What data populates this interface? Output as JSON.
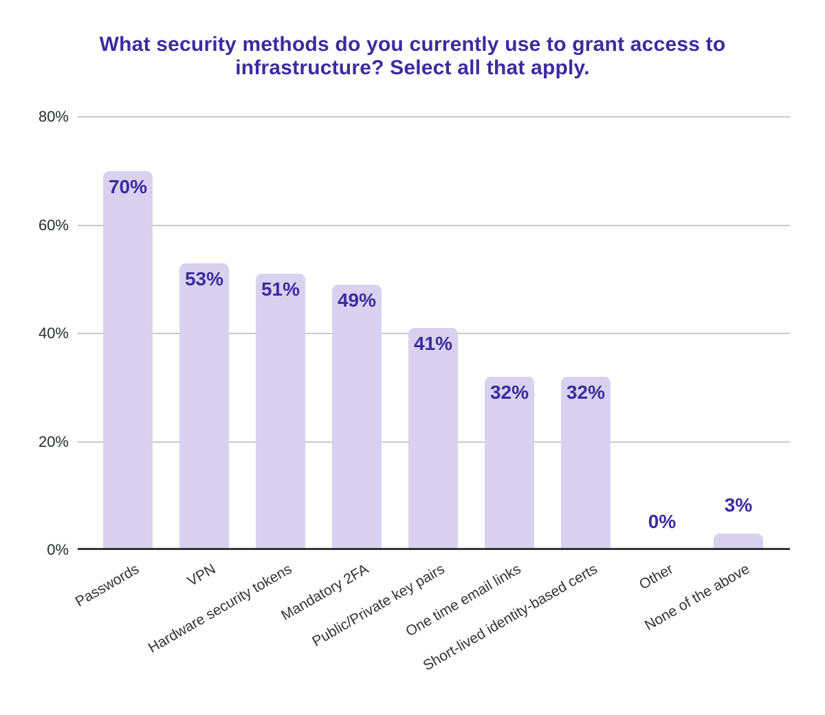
{
  "colors": {
    "background": "#ffffff",
    "title": "#3d2b9e",
    "bar": "#d8d2f0",
    "annotation": "#3d2b9e",
    "axis_tick_text": "#282b2e",
    "category_text": "#333333",
    "gridline": "#c9c9c9",
    "baseline": "#333333"
  },
  "chart_data": {
    "type": "bar",
    "title": "What security methods do you currently use to grant access to infrastructure? Select all that apply.",
    "categories": [
      "Passwords",
      "VPN",
      "Hardware security tokens",
      "Mandatory 2FA",
      "Public/Private key pairs",
      "One time email links",
      "Short-lived identity-based certs",
      "Other",
      "None of the above"
    ],
    "values": [
      70,
      53,
      51,
      49,
      41,
      32,
      32,
      0,
      3
    ],
    "value_labels": [
      "70%",
      "53%",
      "51%",
      "49%",
      "41%",
      "32%",
      "32%",
      "0%",
      "3%"
    ],
    "xlabel": "",
    "ylabel": "",
    "ylim": [
      0,
      80
    ],
    "y_ticks": [
      {
        "value": 0,
        "label": "0%"
      },
      {
        "value": 20,
        "label": "20%"
      },
      {
        "value": 40,
        "label": "40%"
      },
      {
        "value": 60,
        "label": "60%"
      },
      {
        "value": 80,
        "label": "80%"
      }
    ],
    "grid": true,
    "legend": "none",
    "annotation_placement": "inside bar top; above bar when bar is too short",
    "category_label_rotation_deg": -30
  }
}
